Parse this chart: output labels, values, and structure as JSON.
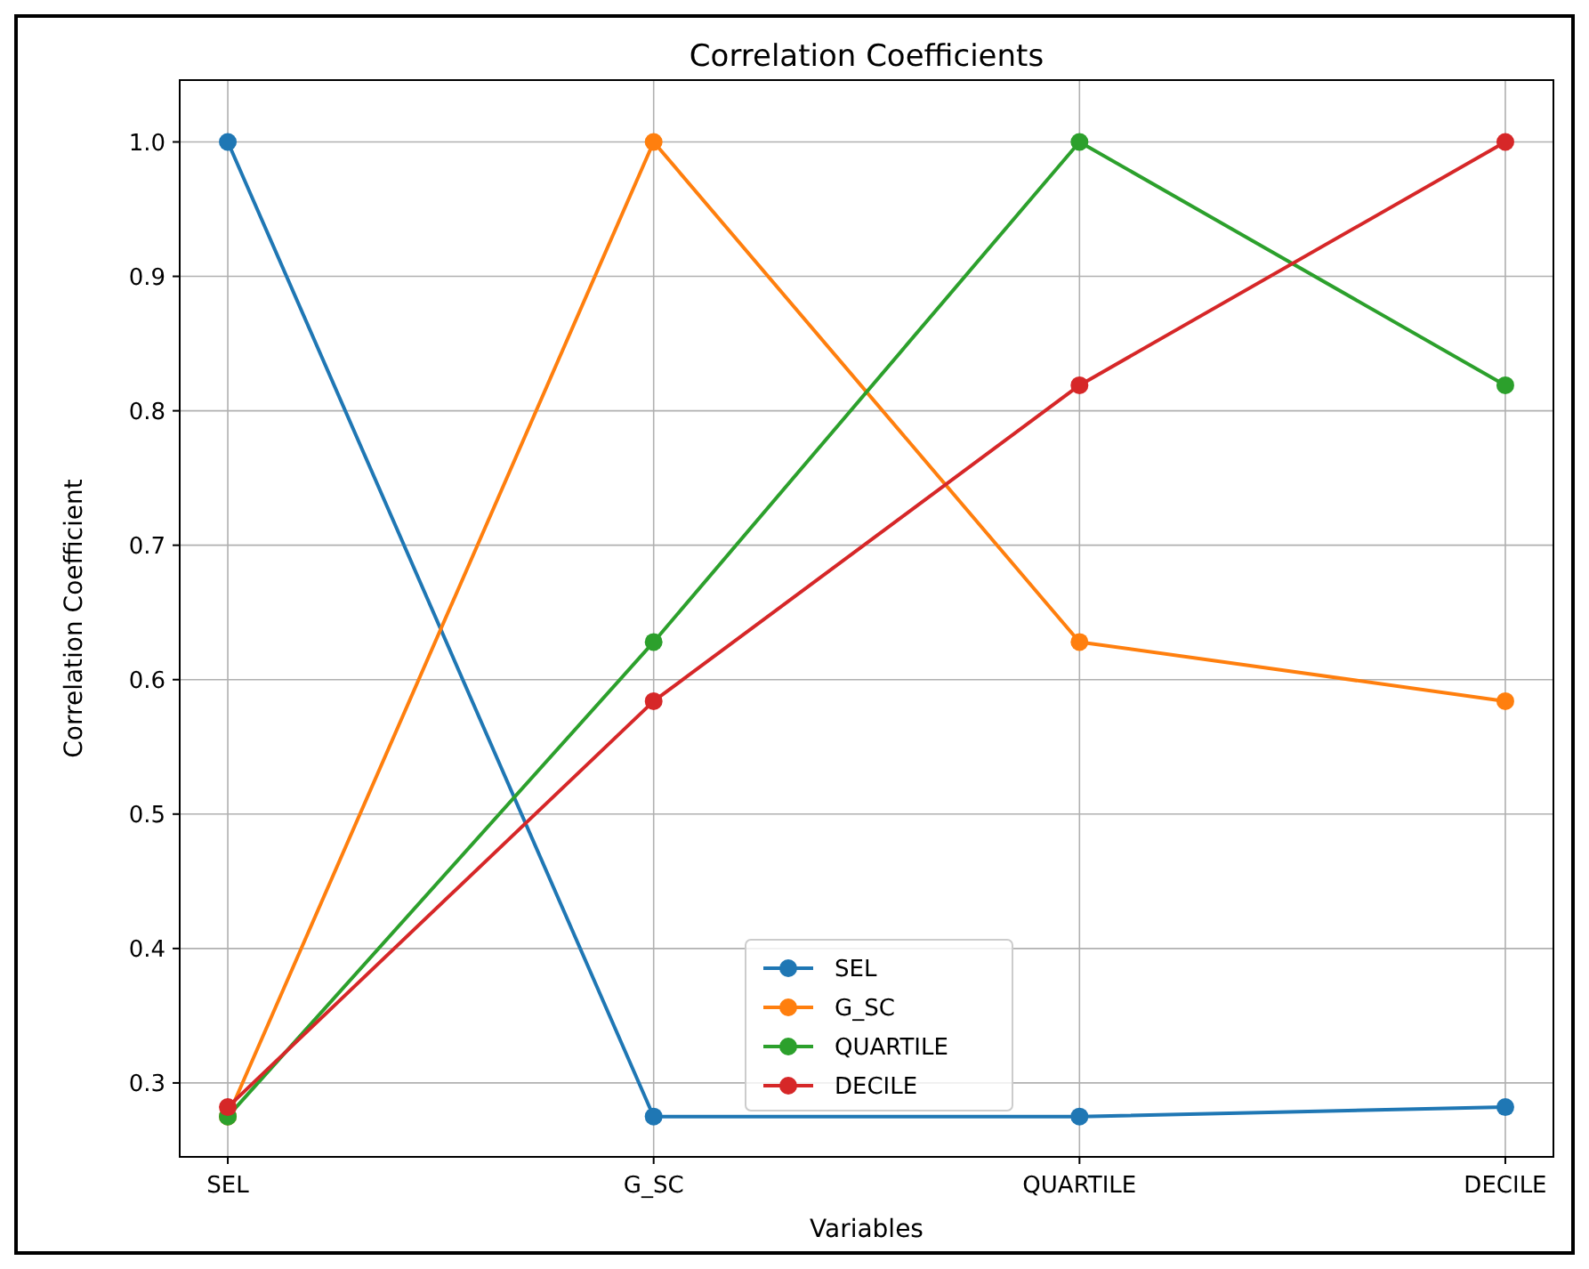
{
  "chart_data": {
    "type": "line",
    "title": "Correlation Coefficients",
    "xlabel": "Variables",
    "ylabel": "Correlation Coefficient",
    "categories": [
      "SEL",
      "G_SC",
      "QUARTILE",
      "DECILE"
    ],
    "series": [
      {
        "name": "SEL",
        "color": "#1f77b4",
        "values": [
          1.0,
          0.275,
          0.275,
          0.282
        ]
      },
      {
        "name": "G_SC",
        "color": "#ff7f0e",
        "values": [
          0.275,
          1.0,
          0.628,
          0.584
        ]
      },
      {
        "name": "QUARTILE",
        "color": "#2ca02c",
        "values": [
          0.275,
          0.628,
          1.0,
          0.819
        ]
      },
      {
        "name": "DECILE",
        "color": "#d62728",
        "values": [
          0.282,
          0.584,
          0.819,
          1.0
        ]
      }
    ],
    "ylim": [
      0.245,
      1.046
    ],
    "yticks": [
      {
        "value": 0.3,
        "label": "0.3"
      },
      {
        "value": 0.4,
        "label": "0.4"
      },
      {
        "value": 0.5,
        "label": "0.5"
      },
      {
        "value": 0.6,
        "label": "0.6"
      },
      {
        "value": 0.7,
        "label": "0.7"
      },
      {
        "value": 0.8,
        "label": "0.8"
      },
      {
        "value": 0.9,
        "label": "0.9"
      },
      {
        "value": 1.0,
        "label": "1.0"
      }
    ],
    "grid": true,
    "legend": "bottom",
    "marker": "circle",
    "line_style": "solid"
  }
}
